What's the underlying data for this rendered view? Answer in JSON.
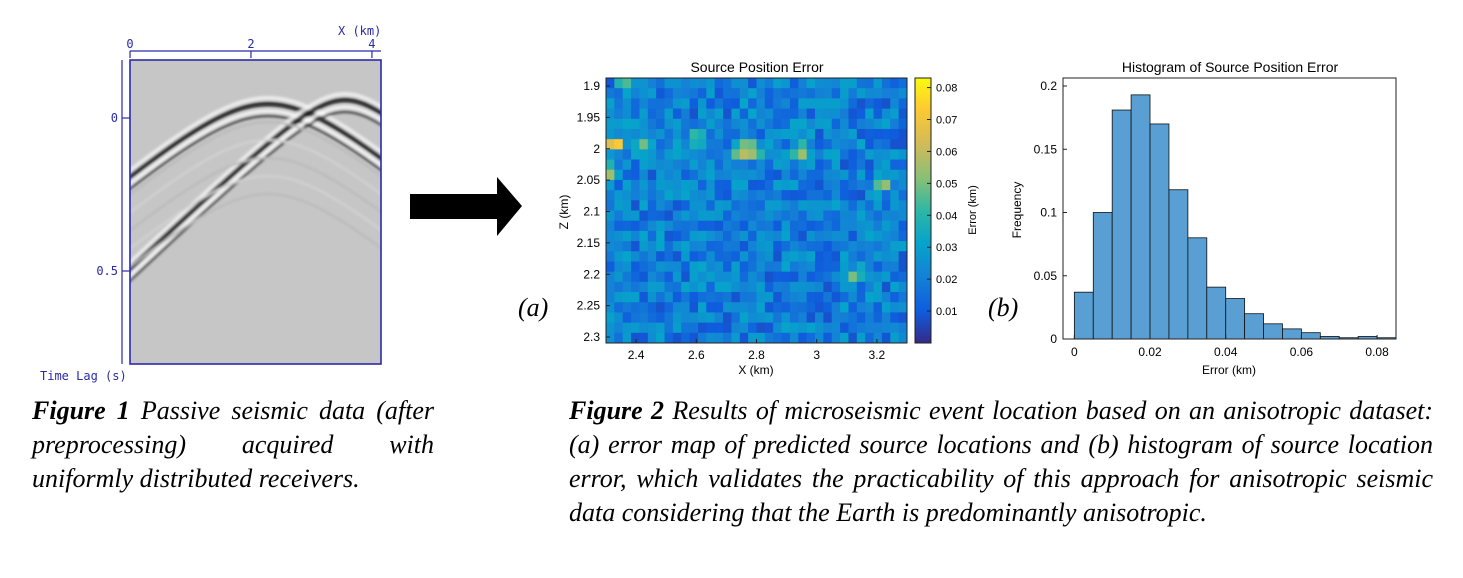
{
  "figure1": {
    "x_axis_label": "X (km)",
    "x_ticks": [
      "0",
      "2",
      "4"
    ],
    "y_axis_label": "Time Lag (s)",
    "y_ticks": [
      "0",
      "0.5"
    ],
    "caption_label": "Figure 1",
    "caption_text": "Passive seismic data (after preprocessing) acquired with uniformly distributed receivers."
  },
  "figure2": {
    "caption_label": "Figure 2",
    "caption_text": "Results of microseismic event location based on an anisotropic dataset: (a) error map of predicted source locations and (b) histogram of source location error, which validates the practicability of this approach for anisotropic seismic data considering that the Earth is predominantly anisotropic.",
    "panel_a_label": "(a)",
    "panel_b_label": "(b)"
  },
  "chart_data": [
    {
      "type": "heatmap",
      "title": "Source Position Error",
      "xlabel": "X (km)",
      "ylabel": "Z (km)",
      "colorbar_label": "Error (km)",
      "x_ticks": [
        "2.4",
        "2.6",
        "2.8",
        "3",
        "3.2"
      ],
      "y_ticks": [
        "1.9",
        "1.95",
        "2",
        "2.05",
        "2.1",
        "2.15",
        "2.2",
        "2.25",
        "2.3"
      ],
      "colorbar_ticks": [
        "0.08",
        "0.07",
        "0.06",
        "0.05",
        "0.04",
        "0.03",
        "0.02",
        "0.01"
      ],
      "xlim": [
        2.3,
        3.3
      ],
      "ylim": [
        1.9,
        2.3
      ],
      "clim": [
        0.0,
        0.083
      ],
      "colormap": "parula",
      "hotspots": [
        {
          "x": 2.33,
          "z": 2.0,
          "value": 0.08
        },
        {
          "x": 2.37,
          "z": 1.9,
          "value": 0.06
        },
        {
          "x": 2.42,
          "z": 2.0,
          "value": 0.05
        },
        {
          "x": 2.75,
          "z": 2.01,
          "value": 0.07
        },
        {
          "x": 2.79,
          "z": 2.01,
          "value": 0.06
        },
        {
          "x": 2.95,
          "z": 2.01,
          "value": 0.06
        },
        {
          "x": 2.3,
          "z": 2.04,
          "value": 0.07
        },
        {
          "x": 3.22,
          "z": 2.06,
          "value": 0.06
        },
        {
          "x": 2.6,
          "z": 1.99,
          "value": 0.05
        },
        {
          "x": 3.12,
          "z": 2.2,
          "value": 0.05
        }
      ]
    },
    {
      "type": "bar",
      "title": "Histogram of Source Position Error",
      "xlabel": "Error (km)",
      "ylabel": "Frequency",
      "bin_width": 0.005,
      "bin_start": 0.0,
      "values": [
        0.037,
        0.1,
        0.181,
        0.193,
        0.17,
        0.118,
        0.08,
        0.041,
        0.032,
        0.02,
        0.012,
        0.008,
        0.005,
        0.002,
        0.001,
        0.002,
        0.001
      ],
      "x_ticks": [
        "0",
        "0.02",
        "0.04",
        "0.06",
        "0.08"
      ],
      "y_ticks": [
        "0",
        "0.05",
        "0.1",
        "0.15",
        "0.2"
      ],
      "xlim": [
        -0.003,
        0.085
      ],
      "ylim": [
        0,
        0.2
      ],
      "bar_color": "#5a9fd4"
    }
  ]
}
